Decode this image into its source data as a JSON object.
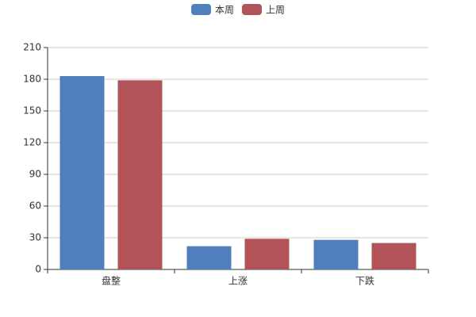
{
  "chart_data": {
    "type": "bar",
    "categories": [
      "盘整",
      "上涨",
      "下跌"
    ],
    "series": [
      {
        "name": "本周",
        "color": "#4f7fbc",
        "values": [
          183,
          22,
          28
        ]
      },
      {
        "name": "上周",
        "color": "#b0545a",
        "values": [
          179,
          29,
          25
        ]
      }
    ],
    "ylim": [
      0,
      210
    ],
    "yticks": [
      0,
      30,
      60,
      90,
      120,
      150,
      180,
      210
    ],
    "grid": true,
    "legend": "top"
  }
}
